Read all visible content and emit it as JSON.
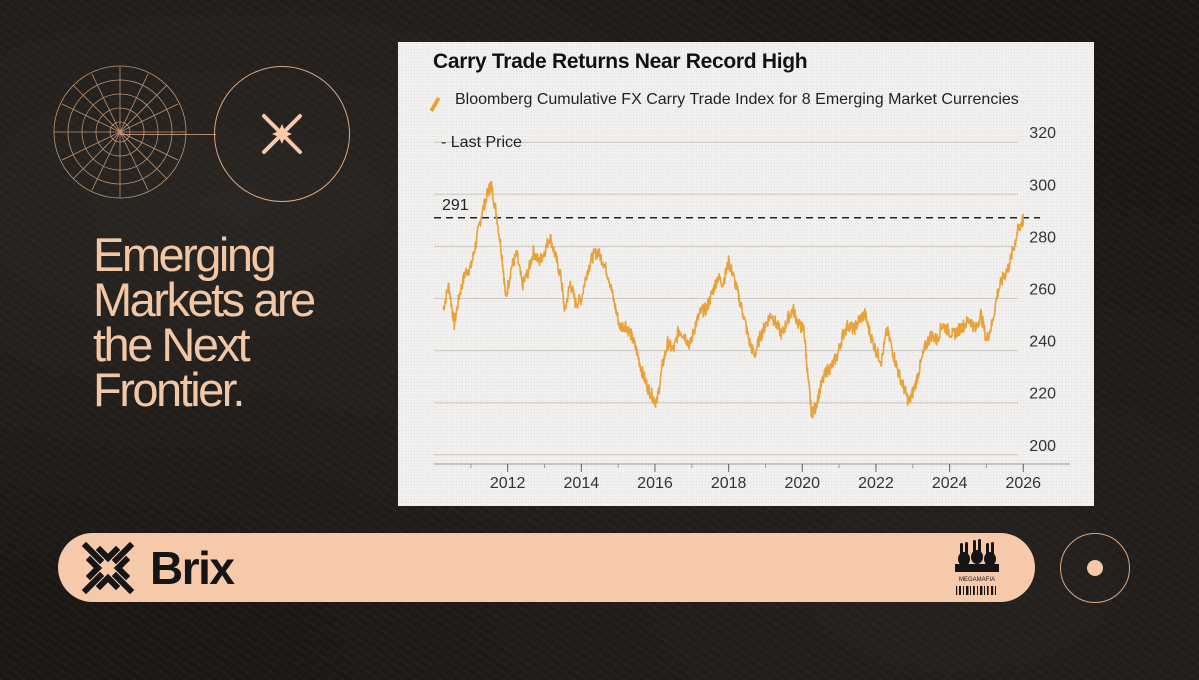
{
  "slide": {
    "headline_lines": [
      "Emerging",
      "Markets are",
      "the Next",
      "Frontier."
    ],
    "brand": "Brix",
    "partner_logo_text": "MEGAMAFIA",
    "colors": {
      "background": "#171412",
      "accent": "#f6c9ab",
      "headline": "#f2c7a5",
      "series": "#e8a23c"
    },
    "icons": [
      "compass-grid-icon",
      "sparkle-star-icon",
      "brix-x-logo-icon",
      "megamafia-bunnies-icon",
      "dot-icon"
    ]
  },
  "chart_data": {
    "type": "line",
    "title": "Carry Trade Returns Near Record High",
    "legend": "Bloomberg Cumulative FX Carry Trade Index for 8 Emerging Market Currencies",
    "legend_sub": "- Last Price",
    "series": [
      {
        "name": "Bloomberg Cumulative FX Carry Trade Index for 8 Emerging Market Currencies",
        "color": "#e8a23c",
        "points": [
          [
            2010.25,
            256
          ],
          [
            2010.4,
            265
          ],
          [
            2010.55,
            250
          ],
          [
            2010.7,
            262
          ],
          [
            2010.85,
            270
          ],
          [
            2011.0,
            272
          ],
          [
            2011.15,
            282
          ],
          [
            2011.3,
            293
          ],
          [
            2011.45,
            300
          ],
          [
            2011.55,
            304
          ],
          [
            2011.7,
            292
          ],
          [
            2011.85,
            276
          ],
          [
            2011.95,
            260
          ],
          [
            2012.1,
            272
          ],
          [
            2012.25,
            277
          ],
          [
            2012.4,
            265
          ],
          [
            2012.55,
            270
          ],
          [
            2012.7,
            278
          ],
          [
            2012.85,
            274
          ],
          [
            2013.0,
            278
          ],
          [
            2013.15,
            284
          ],
          [
            2013.3,
            276
          ],
          [
            2013.45,
            268
          ],
          [
            2013.55,
            255
          ],
          [
            2013.7,
            266
          ],
          [
            2013.85,
            258
          ],
          [
            2014.0,
            260
          ],
          [
            2014.15,
            270
          ],
          [
            2014.3,
            276
          ],
          [
            2014.45,
            278
          ],
          [
            2014.6,
            274
          ],
          [
            2014.75,
            268
          ],
          [
            2014.9,
            258
          ],
          [
            2015.05,
            249
          ],
          [
            2015.2,
            250
          ],
          [
            2015.35,
            246
          ],
          [
            2015.5,
            240
          ],
          [
            2015.65,
            232
          ],
          [
            2015.8,
            226
          ],
          [
            2015.95,
            222
          ],
          [
            2016.05,
            220
          ],
          [
            2016.2,
            234
          ],
          [
            2016.35,
            243
          ],
          [
            2016.5,
            240
          ],
          [
            2016.65,
            248
          ],
          [
            2016.8,
            246
          ],
          [
            2016.95,
            242
          ],
          [
            2017.1,
            250
          ],
          [
            2017.25,
            255
          ],
          [
            2017.4,
            256
          ],
          [
            2017.55,
            262
          ],
          [
            2017.7,
            268
          ],
          [
            2017.85,
            266
          ],
          [
            2018.0,
            274
          ],
          [
            2018.1,
            270
          ],
          [
            2018.25,
            262
          ],
          [
            2018.4,
            254
          ],
          [
            2018.55,
            244
          ],
          [
            2018.7,
            238
          ],
          [
            2018.85,
            245
          ],
          [
            2019.0,
            250
          ],
          [
            2019.15,
            254
          ],
          [
            2019.3,
            250
          ],
          [
            2019.45,
            246
          ],
          [
            2019.6,
            252
          ],
          [
            2019.75,
            256
          ],
          [
            2019.9,
            250
          ],
          [
            2020.05,
            248
          ],
          [
            2020.15,
            230
          ],
          [
            2020.25,
            216
          ],
          [
            2020.35,
            218
          ],
          [
            2020.5,
            226
          ],
          [
            2020.65,
            232
          ],
          [
            2020.8,
            234
          ],
          [
            2020.95,
            238
          ],
          [
            2021.1,
            246
          ],
          [
            2021.25,
            250
          ],
          [
            2021.4,
            248
          ],
          [
            2021.55,
            252
          ],
          [
            2021.7,
            254
          ],
          [
            2021.85,
            246
          ],
          [
            2022.0,
            240
          ],
          [
            2022.15,
            236
          ],
          [
            2022.3,
            248
          ],
          [
            2022.45,
            240
          ],
          [
            2022.6,
            232
          ],
          [
            2022.75,
            226
          ],
          [
            2022.9,
            220
          ],
          [
            2023.05,
            226
          ],
          [
            2023.2,
            234
          ],
          [
            2023.35,
            242
          ],
          [
            2023.5,
            246
          ],
          [
            2023.65,
            244
          ],
          [
            2023.8,
            250
          ],
          [
            2023.95,
            248
          ],
          [
            2024.1,
            246
          ],
          [
            2024.25,
            248
          ],
          [
            2024.4,
            250
          ],
          [
            2024.55,
            252
          ],
          [
            2024.7,
            248
          ],
          [
            2024.85,
            254
          ],
          [
            2025.0,
            244
          ],
          [
            2025.15,
            250
          ],
          [
            2025.3,
            262
          ],
          [
            2025.45,
            268
          ],
          [
            2025.6,
            272
          ],
          [
            2025.75,
            280
          ],
          [
            2025.85,
            286
          ],
          [
            2025.95,
            289
          ],
          [
            2026.0,
            290
          ]
        ]
      }
    ],
    "reference_line": {
      "value": 291,
      "label": "291",
      "style": "dashed"
    },
    "x_ticks": [
      2012,
      2014,
      2016,
      2018,
      2020,
      2022,
      2024,
      2026
    ],
    "y_ticks": [
      200,
      220,
      240,
      260,
      280,
      300,
      320
    ],
    "xlim": [
      2010,
      2026.4
    ],
    "ylim": [
      198,
      322
    ],
    "y_axis_side": "right",
    "grid": "horizontal"
  }
}
